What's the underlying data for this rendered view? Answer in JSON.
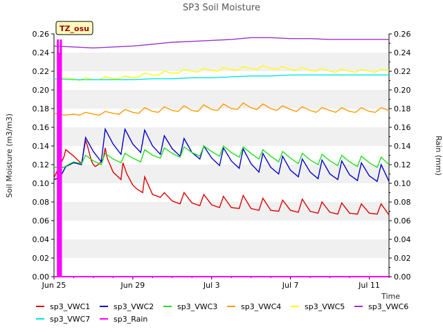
{
  "chart_data": {
    "type": "line",
    "title": "SP3 Soil Moisture",
    "xlabel": "Time",
    "ylabel": "Soil Moisture (m3/m3)",
    "y2label": "Rain (mm)",
    "site_badge": "TZ_osu",
    "x_range_days": [
      0,
      17
    ],
    "x_ticks": [
      {
        "label": "Jun 25",
        "day": 0
      },
      {
        "label": "Jun 29",
        "day": 4
      },
      {
        "label": "Jul 3",
        "day": 8
      },
      {
        "label": "Jul 7",
        "day": 12
      },
      {
        "label": "Jul 11",
        "day": 16
      }
    ],
    "ylim": [
      0,
      0.26
    ],
    "y2lim": [
      0,
      0.26
    ],
    "y_ticks": [
      "0.00",
      "0.02",
      "0.04",
      "0.06",
      "0.08",
      "0.10",
      "0.12",
      "0.14",
      "0.16",
      "0.18",
      "0.20",
      "0.22",
      "0.24",
      "0.26"
    ],
    "grid": "horizontal bands",
    "legend_position": "bottom",
    "series": [
      {
        "name": "sp3_VWC1",
        "color": "#dd0000",
        "axis": "left",
        "x": [
          0.0,
          0.5,
          0.6,
          1.0,
          1.4,
          1.6,
          1.7,
          1.8,
          1.9,
          2.0,
          2.1,
          2.3,
          2.5,
          2.6,
          2.7,
          3.0,
          3.2,
          3.4,
          3.5,
          3.7,
          4.0,
          4.2,
          4.5,
          4.6,
          5.0,
          5.4,
          5.6,
          6.0,
          6.4,
          6.6,
          7.0,
          7.4,
          7.6,
          8.0,
          8.4,
          8.6,
          9.0,
          9.4,
          9.6,
          10.0,
          10.4,
          10.6,
          11.0,
          11.4,
          11.6,
          12.0,
          12.4,
          12.6,
          13.0,
          13.4,
          13.6,
          14.0,
          14.4,
          14.6,
          15.0,
          15.4,
          15.6,
          16.0,
          16.4,
          16.6,
          17.0
        ],
        "y": [
          0.106,
          0.128,
          0.136,
          0.129,
          0.121,
          0.146,
          0.14,
          0.132,
          0.124,
          0.12,
          0.118,
          0.121,
          0.126,
          0.138,
          0.127,
          0.112,
          0.108,
          0.104,
          0.122,
          0.11,
          0.098,
          0.094,
          0.09,
          0.107,
          0.088,
          0.085,
          0.09,
          0.081,
          0.078,
          0.09,
          0.079,
          0.076,
          0.088,
          0.077,
          0.074,
          0.086,
          0.074,
          0.073,
          0.087,
          0.073,
          0.071,
          0.084,
          0.071,
          0.07,
          0.082,
          0.071,
          0.069,
          0.083,
          0.07,
          0.068,
          0.08,
          0.069,
          0.067,
          0.079,
          0.068,
          0.067,
          0.078,
          0.068,
          0.067,
          0.078,
          0.066
        ]
      },
      {
        "name": "sp3_VWC2",
        "color": "#0000cc",
        "axis": "left",
        "x": [
          0.0,
          0.3,
          0.6,
          1.0,
          1.4,
          1.6,
          2.0,
          2.4,
          2.6,
          3.0,
          3.4,
          3.6,
          4.0,
          4.4,
          4.6,
          5.0,
          5.4,
          5.6,
          6.0,
          6.4,
          6.6,
          7.0,
          7.4,
          7.6,
          8.0,
          8.4,
          8.6,
          9.0,
          9.4,
          9.6,
          10.0,
          10.4,
          10.6,
          11.0,
          11.4,
          11.6,
          12.0,
          12.4,
          12.6,
          13.0,
          13.4,
          13.6,
          14.0,
          14.4,
          14.6,
          15.0,
          15.4,
          15.6,
          16.0,
          16.4,
          16.6,
          17.0
        ],
        "y": [
          0.104,
          0.106,
          0.118,
          0.122,
          0.12,
          0.149,
          0.134,
          0.123,
          0.158,
          0.142,
          0.131,
          0.158,
          0.142,
          0.133,
          0.157,
          0.14,
          0.131,
          0.151,
          0.137,
          0.129,
          0.148,
          0.133,
          0.126,
          0.14,
          0.127,
          0.119,
          0.138,
          0.124,
          0.116,
          0.137,
          0.121,
          0.112,
          0.132,
          0.117,
          0.11,
          0.129,
          0.114,
          0.107,
          0.126,
          0.112,
          0.105,
          0.125,
          0.11,
          0.104,
          0.124,
          0.109,
          0.103,
          0.122,
          0.108,
          0.102,
          0.12,
          0.102
        ]
      },
      {
        "name": "sp3_VWC3",
        "color": "#22dd22",
        "axis": "left",
        "x": [
          0.0,
          0.5,
          0.8,
          1.0,
          1.4,
          1.6,
          2.0,
          2.4,
          2.6,
          3.0,
          3.4,
          3.6,
          4.0,
          4.4,
          4.6,
          5.0,
          5.4,
          5.6,
          6.0,
          6.4,
          6.6,
          7.0,
          7.4,
          7.6,
          8.0,
          8.4,
          8.6,
          9.0,
          9.4,
          9.6,
          10.0,
          10.4,
          10.6,
          11.0,
          11.4,
          11.6,
          12.0,
          12.4,
          12.6,
          13.0,
          13.4,
          13.6,
          14.0,
          14.4,
          14.6,
          15.0,
          15.4,
          15.6,
          16.0,
          16.4,
          16.6,
          17.0
        ],
        "y": [
          0.117,
          0.117,
          0.121,
          0.123,
          0.121,
          0.13,
          0.124,
          0.12,
          0.132,
          0.126,
          0.122,
          0.132,
          0.127,
          0.123,
          0.136,
          0.13,
          0.127,
          0.138,
          0.132,
          0.128,
          0.139,
          0.133,
          0.129,
          0.14,
          0.134,
          0.129,
          0.14,
          0.133,
          0.128,
          0.139,
          0.132,
          0.126,
          0.136,
          0.129,
          0.123,
          0.134,
          0.127,
          0.121,
          0.132,
          0.125,
          0.12,
          0.131,
          0.124,
          0.119,
          0.13,
          0.123,
          0.118,
          0.129,
          0.122,
          0.117,
          0.128,
          0.12
        ]
      },
      {
        "name": "sp3_VWC4",
        "color": "#ff9900",
        "axis": "left",
        "x": [
          0.0,
          0.5,
          1.0,
          1.3,
          1.6,
          2.0,
          2.3,
          2.6,
          3.0,
          3.3,
          3.6,
          4.0,
          4.3,
          4.6,
          5.0,
          5.3,
          5.6,
          6.0,
          6.3,
          6.6,
          7.0,
          7.3,
          7.6,
          8.0,
          8.3,
          8.6,
          9.0,
          9.3,
          9.6,
          10.0,
          10.3,
          10.6,
          11.0,
          11.3,
          11.6,
          12.0,
          12.3,
          12.6,
          13.0,
          13.3,
          13.6,
          14.0,
          14.3,
          14.6,
          15.0,
          15.3,
          15.6,
          16.0,
          16.3,
          16.6,
          17.0
        ],
        "y": [
          0.175,
          0.173,
          0.174,
          0.173,
          0.176,
          0.174,
          0.173,
          0.177,
          0.175,
          0.174,
          0.179,
          0.176,
          0.175,
          0.181,
          0.177,
          0.176,
          0.182,
          0.178,
          0.177,
          0.183,
          0.178,
          0.177,
          0.184,
          0.179,
          0.178,
          0.185,
          0.18,
          0.179,
          0.186,
          0.181,
          0.179,
          0.185,
          0.18,
          0.178,
          0.183,
          0.179,
          0.177,
          0.182,
          0.178,
          0.176,
          0.181,
          0.178,
          0.176,
          0.181,
          0.177,
          0.176,
          0.181,
          0.177,
          0.176,
          0.181,
          0.178
        ]
      },
      {
        "name": "sp3_VWC5",
        "color": "#ffff00",
        "axis": "left",
        "x": [
          0.0,
          0.5,
          1.0,
          1.3,
          1.6,
          2.0,
          2.3,
          2.6,
          3.0,
          3.3,
          3.6,
          4.0,
          4.3,
          4.6,
          5.0,
          5.3,
          5.6,
          6.0,
          6.3,
          6.6,
          7.0,
          7.3,
          7.6,
          8.0,
          8.3,
          8.6,
          9.0,
          9.3,
          9.6,
          10.0,
          10.3,
          10.6,
          11.0,
          11.3,
          11.6,
          12.0,
          12.3,
          12.6,
          13.0,
          13.3,
          13.6,
          14.0,
          14.3,
          14.6,
          15.0,
          15.3,
          15.6,
          16.0,
          16.3,
          16.6,
          17.0
        ],
        "y": [
          0.212,
          0.213,
          0.212,
          0.21,
          0.213,
          0.211,
          0.211,
          0.214,
          0.212,
          0.212,
          0.215,
          0.213,
          0.214,
          0.218,
          0.216,
          0.216,
          0.22,
          0.218,
          0.218,
          0.222,
          0.22,
          0.219,
          0.223,
          0.221,
          0.22,
          0.224,
          0.222,
          0.221,
          0.225,
          0.223,
          0.222,
          0.226,
          0.223,
          0.222,
          0.225,
          0.222,
          0.221,
          0.224,
          0.221,
          0.22,
          0.223,
          0.22,
          0.219,
          0.222,
          0.22,
          0.219,
          0.222,
          0.22,
          0.219,
          0.222,
          0.221
        ]
      },
      {
        "name": "sp3_VWC6",
        "color": "#9933cc",
        "axis": "left",
        "x": [
          0.0,
          1.0,
          2.0,
          3.0,
          4.0,
          5.0,
          6.0,
          7.0,
          8.0,
          9.0,
          10.0,
          11.0,
          12.0,
          13.0,
          14.0,
          15.0,
          16.0,
          17.0
        ],
        "y": [
          0.247,
          0.246,
          0.245,
          0.246,
          0.247,
          0.249,
          0.251,
          0.252,
          0.253,
          0.254,
          0.256,
          0.256,
          0.255,
          0.255,
          0.254,
          0.254,
          0.254,
          0.254
        ]
      },
      {
        "name": "sp3_VWC7",
        "color": "#00e5e5",
        "axis": "left",
        "x": [
          0.0,
          1.0,
          2.0,
          3.0,
          4.0,
          5.0,
          6.0,
          7.0,
          8.0,
          9.0,
          10.0,
          11.0,
          12.0,
          13.0,
          14.0,
          15.0,
          16.0,
          17.0
        ],
        "y": [
          0.212,
          0.211,
          0.211,
          0.211,
          0.211,
          0.212,
          0.212,
          0.213,
          0.213,
          0.214,
          0.215,
          0.215,
          0.216,
          0.216,
          0.216,
          0.216,
          0.216,
          0.216
        ]
      },
      {
        "name": "sp3_Rain",
        "color": "#ff00ff",
        "axis": "right",
        "bars": [
          {
            "day": 0.2,
            "value": 0.254
          },
          {
            "day": 0.35,
            "value": 0.254
          },
          {
            "day": 0.27,
            "value": 0.24
          }
        ],
        "x": [
          0.0,
          17.0
        ],
        "y": [
          0.0,
          0.0
        ]
      }
    ]
  }
}
